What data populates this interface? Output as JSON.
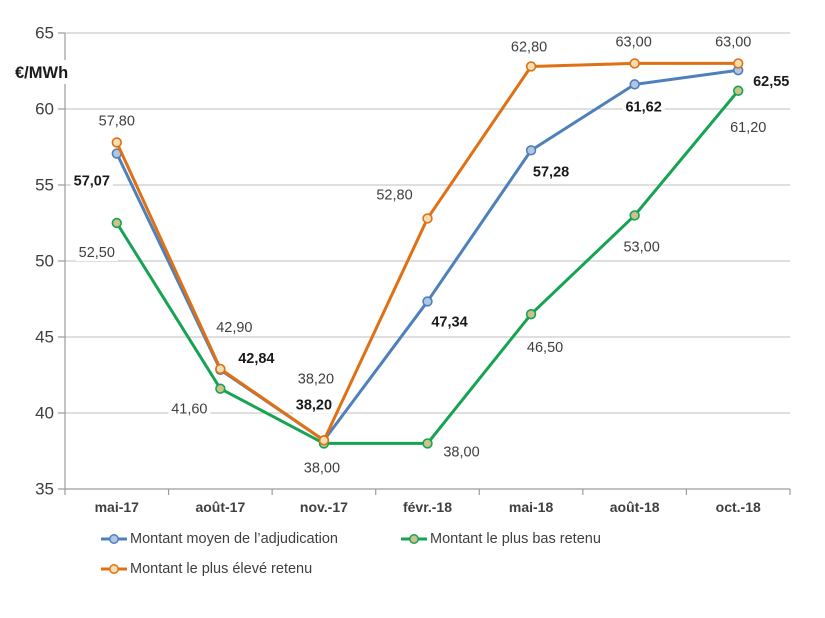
{
  "chart_data": {
    "type": "line",
    "title": "",
    "ylabel": "€/MWh",
    "xlabel": "",
    "grid": true,
    "legend_position": "bottom",
    "x_categories": [
      "mai-17",
      "août-17",
      "nov.-17",
      "févr.-18",
      "mai-18",
      "août-18",
      "oct.-18"
    ],
    "y_axis": {
      "min": 35,
      "max": 65,
      "step": 5,
      "tick_labels": [
        "35",
        "40",
        "45",
        "50",
        "55",
        "60",
        "65"
      ]
    },
    "series": [
      {
        "name": "Montant moyen de l’adjudication",
        "color": "#4e80bc",
        "marker_fill": "#b0c6e1",
        "values": [
          57.07,
          42.84,
          38.2,
          47.34,
          57.28,
          61.62,
          62.55
        ],
        "labels": [
          "57,07",
          "42,84",
          "38,20",
          "47,34",
          "57,28",
          "61,62",
          "62,55"
        ],
        "label_bold": true,
        "label_offsets": [
          [
            -25,
            28
          ],
          [
            36,
            -11
          ],
          [
            -10,
            -35
          ],
          [
            22,
            21
          ],
          [
            20,
            22
          ],
          [
            9,
            23
          ],
          [
            33,
            12
          ]
        ]
      },
      {
        "name": "Montant le plus bas retenu",
        "color": "#16a353",
        "marker_fill": "#cdc18c",
        "values": [
          52.5,
          41.6,
          38.0,
          38.0,
          46.5,
          53.0,
          61.2
        ],
        "labels": [
          "52,50",
          "41,60",
          "38,00",
          "38,00",
          "46,50",
          "53,00",
          "61,20"
        ],
        "label_bold": false,
        "label_offsets": [
          [
            -20,
            30
          ],
          [
            -31,
            21
          ],
          [
            -2,
            25
          ],
          [
            34,
            9
          ],
          [
            14,
            34
          ],
          [
            7,
            32
          ],
          [
            10,
            37
          ]
        ]
      },
      {
        "name": "Montant le plus élevé retenu",
        "color": "#df7014",
        "marker_fill": "#f3dfb4",
        "values": [
          57.8,
          42.9,
          38.2,
          52.8,
          62.8,
          63.0,
          63.0
        ],
        "labels": [
          "57,80",
          "42,90",
          "38,20",
          "52,80",
          "62,80",
          "63,00",
          "63,00"
        ],
        "label_bold": false,
        "label_offsets": [
          [
            0,
            -21
          ],
          [
            14,
            -41
          ],
          [
            -8,
            -61
          ],
          [
            -33,
            -23
          ],
          [
            -2,
            -19
          ],
          [
            -1,
            -21
          ],
          [
            -5,
            -21
          ]
        ]
      }
    ],
    "colors": {
      "gridline": "#bfbfbf",
      "axis": "#9c9c9c",
      "tick_text": "#3f3f3f",
      "label_text": "#3f3f3f",
      "label_text_bold": "#1a1a1a",
      "background": "#ffffff"
    }
  }
}
